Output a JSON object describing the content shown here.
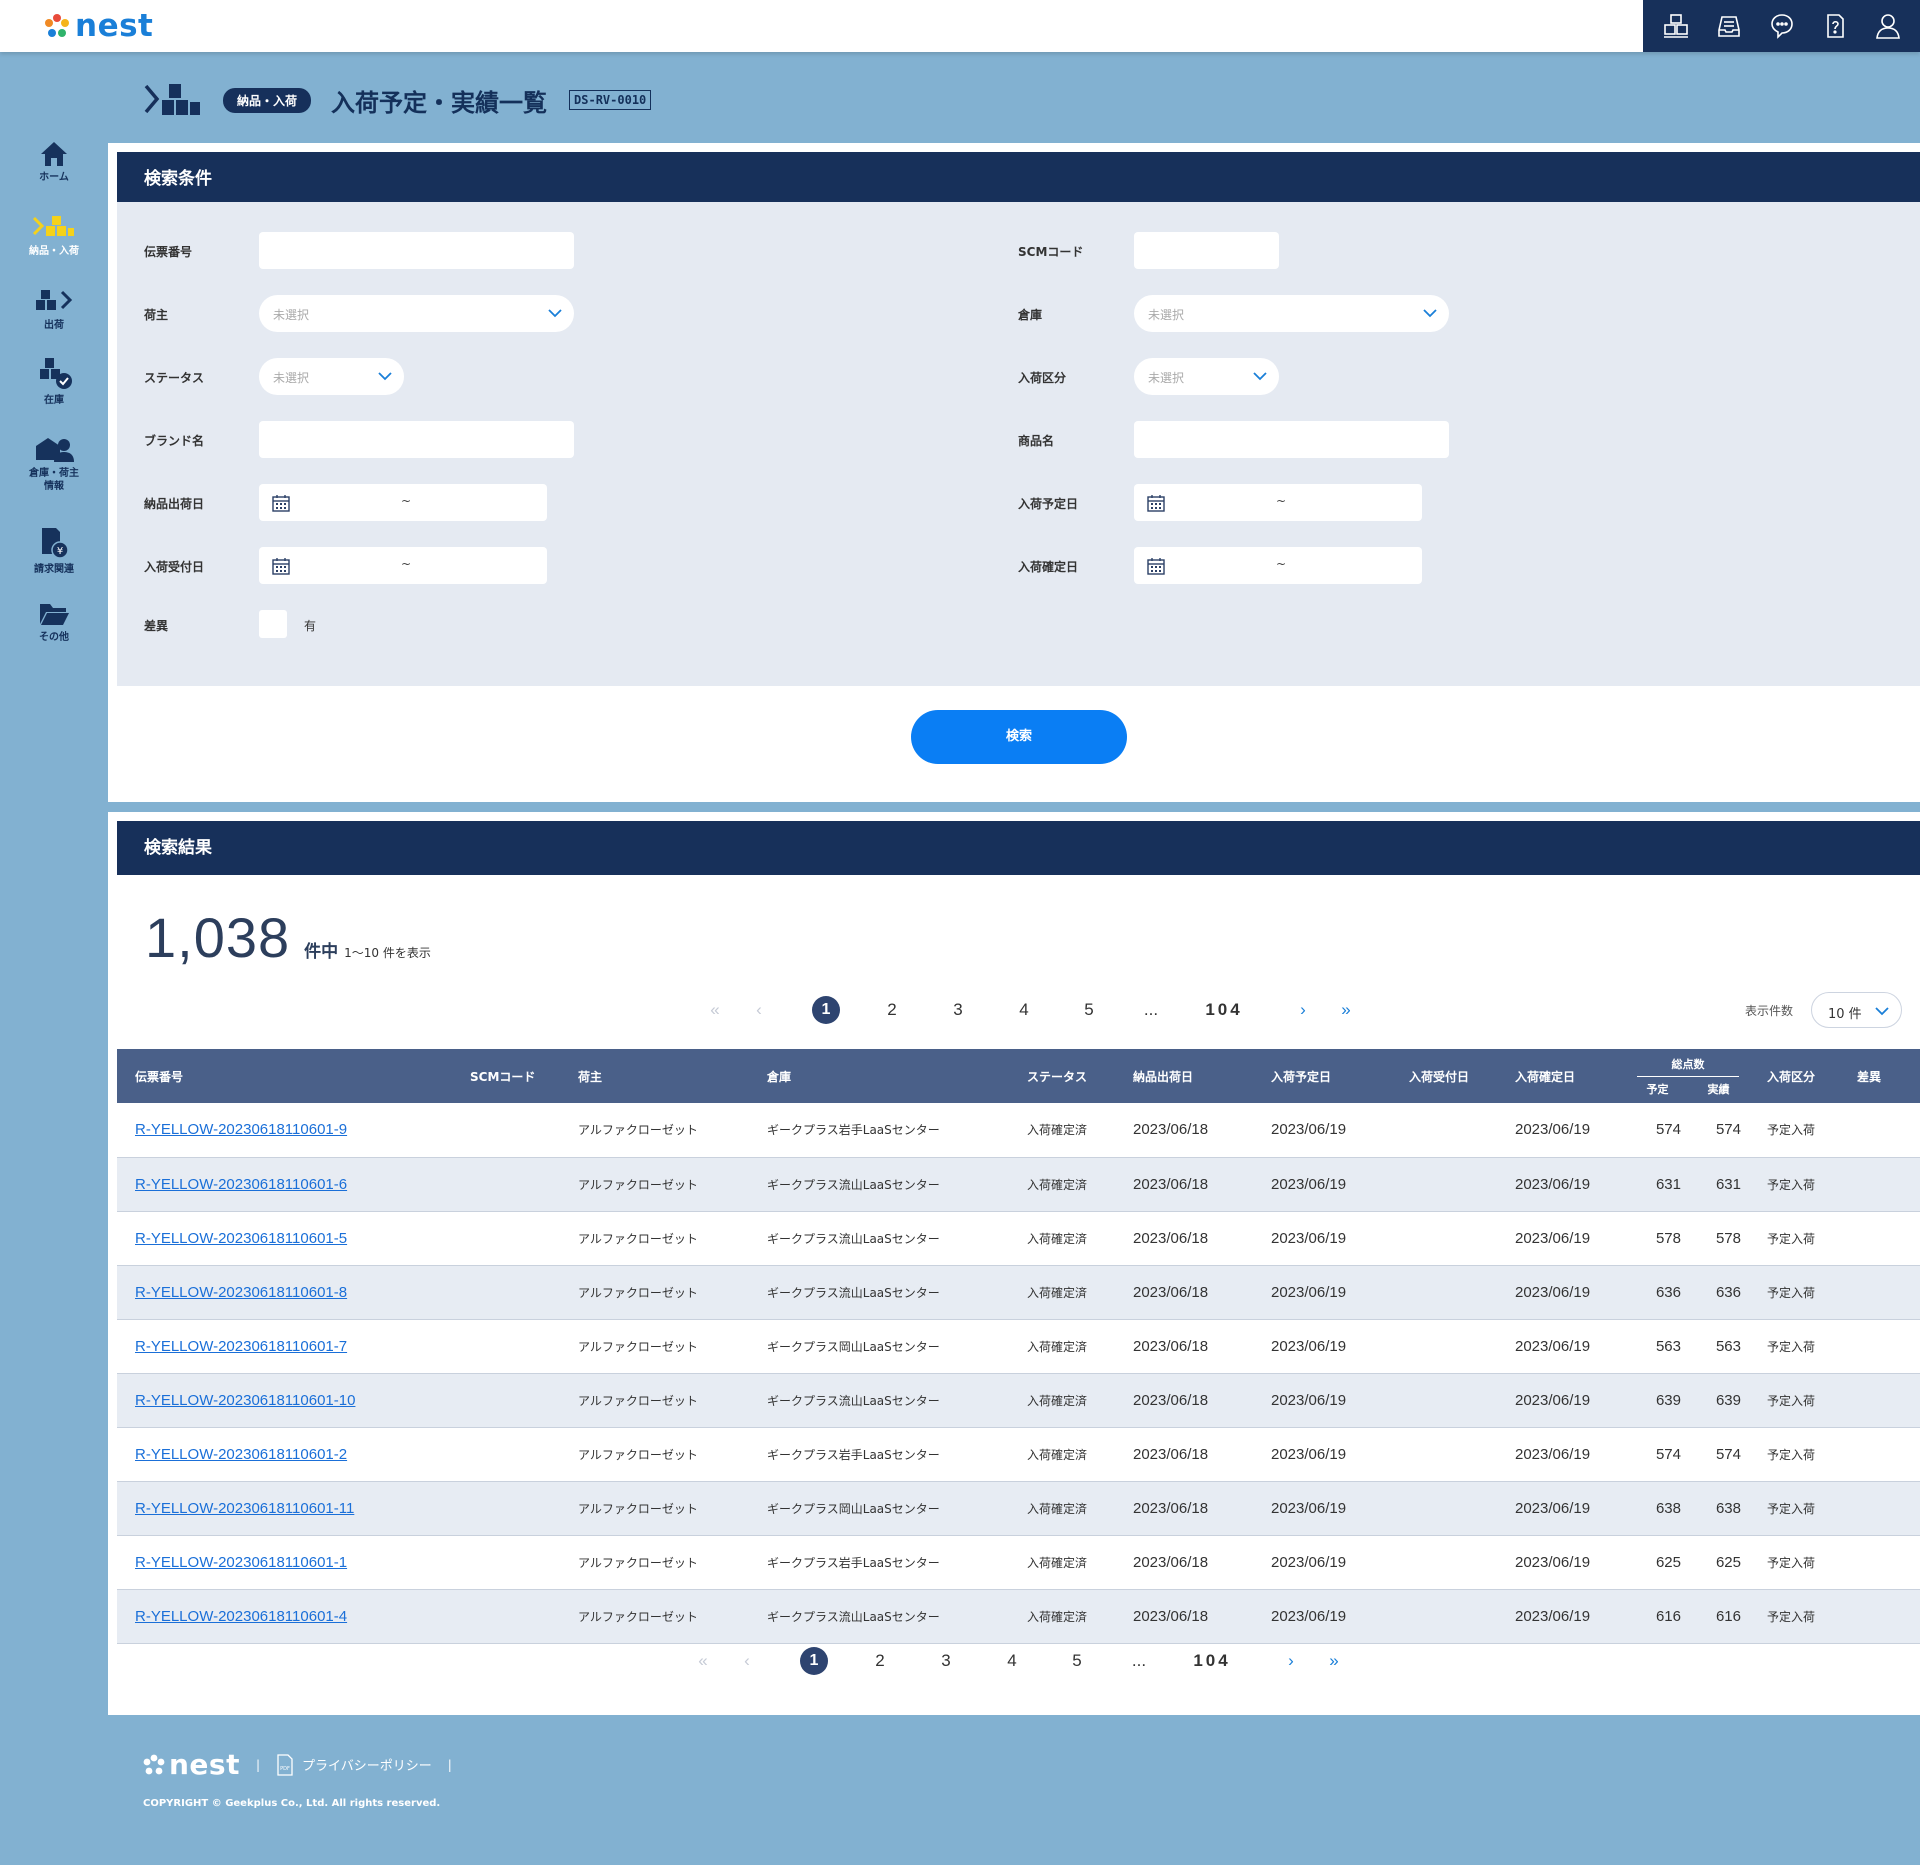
{
  "header": {
    "logo_text": "nest",
    "icons": [
      "warehouse-icon",
      "inbox-icon",
      "chat-icon",
      "help-doc-icon",
      "user-icon"
    ]
  },
  "sidebar": {
    "items": [
      {
        "label": "ホーム",
        "icon": "home-icon"
      },
      {
        "label": "納品・入荷",
        "icon": "inbound-icon",
        "active": true
      },
      {
        "label": "出荷",
        "icon": "outbound-icon"
      },
      {
        "label": "在庫",
        "icon": "stock-icon"
      },
      {
        "label": "倉庫・荷主\n情報",
        "icon": "warehouse-owner-icon"
      },
      {
        "label": "請求関連",
        "icon": "billing-icon"
      },
      {
        "label": "その他",
        "icon": "folder-icon"
      }
    ]
  },
  "page": {
    "badge": "納品・入荷",
    "title": "入荷予定・実績一覧",
    "code": "DS-RV-0010"
  },
  "search": {
    "heading": "検索条件",
    "labels": {
      "slip_no": "伝票番号",
      "scm_code": "SCMコード",
      "owner": "荷主",
      "warehouse": "倉庫",
      "status": "ステータス",
      "inbound_type": "入荷区分",
      "brand": "ブランド名",
      "product": "商品名",
      "ship_date": "納品出荷日",
      "planned_date": "入荷予定日",
      "received_date": "入荷受付日",
      "confirmed_date": "入荷確定日",
      "diff": "差異",
      "diff_option": "有"
    },
    "placeholder": "未選択",
    "tilde": "~",
    "button": "検索"
  },
  "results": {
    "heading": "検索結果",
    "total": "1,038",
    "unit": "件中",
    "range": "1～10 件を表示",
    "pages": [
      "1",
      "2",
      "3",
      "4",
      "5",
      "...",
      "104"
    ],
    "current_page": "1",
    "per_page_label": "表示件数",
    "per_page_value": "10 件",
    "columns": {
      "slip_no": "伝票番号",
      "scm": "SCMコード",
      "owner": "荷主",
      "warehouse": "倉庫",
      "status": "ステータス",
      "ship_date": "納品出荷日",
      "planned": "入荷予定日",
      "received": "入荷受付日",
      "confirmed": "入荷確定日",
      "total_qty": "総点数",
      "planned_qty": "予定",
      "actual_qty": "実績",
      "type": "入荷区分",
      "diff": "差異"
    },
    "rows": [
      {
        "slip": "R-YELLOW-20230618110601-9",
        "owner": "アルファクローゼット",
        "warehouse": "ギークプラス岩手LaaSセンター",
        "status": "入荷確定済",
        "ship": "2023/06/18",
        "planned": "2023/06/19",
        "received": "",
        "confirmed": "2023/06/19",
        "qty_plan": "574",
        "qty_act": "574",
        "type": "予定入荷"
      },
      {
        "slip": "R-YELLOW-20230618110601-6",
        "owner": "アルファクローゼット",
        "warehouse": "ギークプラス流山LaaSセンター",
        "status": "入荷確定済",
        "ship": "2023/06/18",
        "planned": "2023/06/19",
        "received": "",
        "confirmed": "2023/06/19",
        "qty_plan": "631",
        "qty_act": "631",
        "type": "予定入荷"
      },
      {
        "slip": "R-YELLOW-20230618110601-5",
        "owner": "アルファクローゼット",
        "warehouse": "ギークプラス流山LaaSセンター",
        "status": "入荷確定済",
        "ship": "2023/06/18",
        "planned": "2023/06/19",
        "received": "",
        "confirmed": "2023/06/19",
        "qty_plan": "578",
        "qty_act": "578",
        "type": "予定入荷"
      },
      {
        "slip": "R-YELLOW-20230618110601-8",
        "owner": "アルファクローゼット",
        "warehouse": "ギークプラス流山LaaSセンター",
        "status": "入荷確定済",
        "ship": "2023/06/18",
        "planned": "2023/06/19",
        "received": "",
        "confirmed": "2023/06/19",
        "qty_plan": "636",
        "qty_act": "636",
        "type": "予定入荷"
      },
      {
        "slip": "R-YELLOW-20230618110601-7",
        "owner": "アルファクローゼット",
        "warehouse": "ギークプラス岡山LaaSセンター",
        "status": "入荷確定済",
        "ship": "2023/06/18",
        "planned": "2023/06/19",
        "received": "",
        "confirmed": "2023/06/19",
        "qty_plan": "563",
        "qty_act": "563",
        "type": "予定入荷"
      },
      {
        "slip": "R-YELLOW-20230618110601-10",
        "owner": "アルファクローゼット",
        "warehouse": "ギークプラス流山LaaSセンター",
        "status": "入荷確定済",
        "ship": "2023/06/18",
        "planned": "2023/06/19",
        "received": "",
        "confirmed": "2023/06/19",
        "qty_plan": "639",
        "qty_act": "639",
        "type": "予定入荷"
      },
      {
        "slip": "R-YELLOW-20230618110601-2",
        "owner": "アルファクローゼット",
        "warehouse": "ギークプラス岩手LaaSセンター",
        "status": "入荷確定済",
        "ship": "2023/06/18",
        "planned": "2023/06/19",
        "received": "",
        "confirmed": "2023/06/19",
        "qty_plan": "574",
        "qty_act": "574",
        "type": "予定入荷"
      },
      {
        "slip": "R-YELLOW-20230618110601-11",
        "owner": "アルファクローゼット",
        "warehouse": "ギークプラス岡山LaaSセンター",
        "status": "入荷確定済",
        "ship": "2023/06/18",
        "planned": "2023/06/19",
        "received": "",
        "confirmed": "2023/06/19",
        "qty_plan": "638",
        "qty_act": "638",
        "type": "予定入荷"
      },
      {
        "slip": "R-YELLOW-20230618110601-1",
        "owner": "アルファクローゼット",
        "warehouse": "ギークプラス岩手LaaSセンター",
        "status": "入荷確定済",
        "ship": "2023/06/18",
        "planned": "2023/06/19",
        "received": "",
        "confirmed": "2023/06/19",
        "qty_plan": "625",
        "qty_act": "625",
        "type": "予定入荷"
      },
      {
        "slip": "R-YELLOW-20230618110601-4",
        "owner": "アルファクローゼット",
        "warehouse": "ギークプラス流山LaaSセンター",
        "status": "入荷確定済",
        "ship": "2023/06/18",
        "planned": "2023/06/19",
        "received": "",
        "confirmed": "2023/06/19",
        "qty_plan": "616",
        "qty_act": "616",
        "type": "予定入荷"
      }
    ]
  },
  "footer": {
    "logo_text": "nest",
    "separator": "|",
    "privacy": "プライバシーポリシー",
    "copyright": "COPYRIGHT © Geekplus Co., Ltd. All rights reserved."
  },
  "colors": {
    "background": "#82b1d1",
    "navy": "#17305a",
    "table_header": "#4a6089",
    "primary_button": "#0a7ef4",
    "link": "#1a6fd8",
    "form_bg": "#e5eaf2"
  }
}
